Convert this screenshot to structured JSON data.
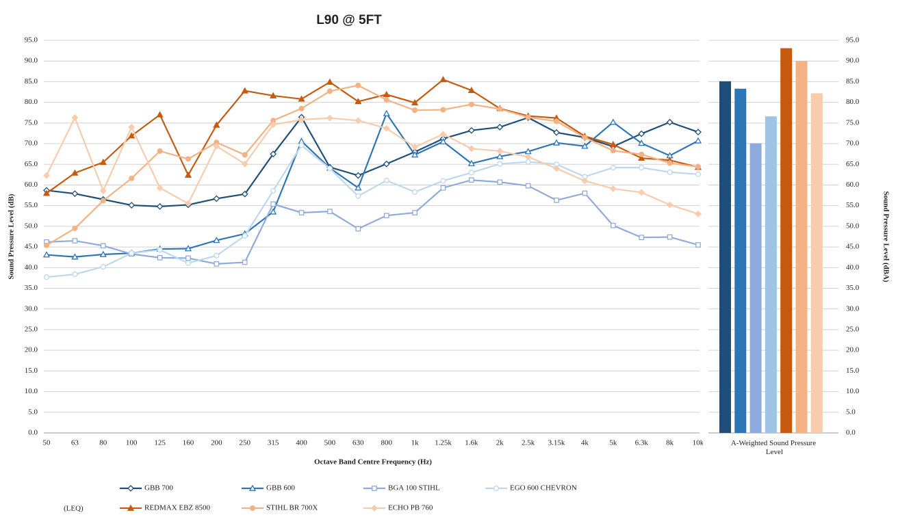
{
  "chart_data": [
    {
      "type": "line",
      "title": "L90 @ 5FT",
      "y_label": "Sound Pressure Level (dB)",
      "x_label": "Octave Band Centre Frequency (Hz)",
      "grid": true,
      "categories": [
        "50",
        "63",
        "80",
        "100",
        "125",
        "160",
        "200",
        "250",
        "315",
        "400",
        "500",
        "630",
        "800",
        "1k",
        "1.25k",
        "1.6k",
        "2k",
        "2.5k",
        "3.15k",
        "4k",
        "5k",
        "6.3k",
        "8k",
        "10k"
      ],
      "ylim": [
        0,
        95
      ],
      "yticks": [
        {
          "value": 0,
          "label": "0.0"
        },
        {
          "value": 5,
          "label": "5.0"
        },
        {
          "value": 10,
          "label": "10.0"
        },
        {
          "value": 15,
          "label": "15.0"
        },
        {
          "value": 20,
          "label": "20.0"
        },
        {
          "value": 25,
          "label": "25.0"
        },
        {
          "value": 30,
          "label": "30.0"
        },
        {
          "value": 35,
          "label": "35.0"
        },
        {
          "value": 40,
          "label": "40.0"
        },
        {
          "value": 45,
          "label": "45.0"
        },
        {
          "value": 50,
          "label": "50.0"
        },
        {
          "value": 55,
          "label": "55.0"
        },
        {
          "value": 60,
          "label": "60.0"
        },
        {
          "value": 65,
          "label": "65.0"
        },
        {
          "value": 70,
          "label": "70.0"
        },
        {
          "value": 75,
          "label": "75.0"
        },
        {
          "value": 80,
          "label": "80.0"
        },
        {
          "value": 85,
          "label": "85.0"
        },
        {
          "value": 90,
          "label": "90.0"
        },
        {
          "value": 95,
          "label": "95.0"
        }
      ],
      "legend_note": "(LEQ)",
      "series": [
        {
          "name": "GBB 700",
          "color": "#1f4e79",
          "marker": "diamond",
          "filled": false,
          "values": [
            58.7,
            57.9,
            56.5,
            55.1,
            54.8,
            55.2,
            56.7,
            57.8,
            67.5,
            76.4,
            64.3,
            62.3,
            65.1,
            68.0,
            71.2,
            73.2,
            74.0,
            76.3,
            72.7,
            71.5,
            69.3,
            72.4,
            75.2,
            72.8
          ]
        },
        {
          "name": "GBB 600",
          "color": "#2e75b6",
          "marker": "triangle",
          "filled": false,
          "values": [
            43.1,
            42.6,
            43.2,
            43.5,
            44.5,
            44.6,
            46.6,
            48.2,
            53.5,
            70.6,
            64.1,
            59.3,
            77.3,
            67.3,
            70.5,
            65.2,
            66.9,
            68.1,
            70.2,
            69.4,
            75.2,
            70.1,
            67.1,
            70.7
          ]
        },
        {
          "name": "BGA 100 STIHL",
          "color": "#8faadc",
          "marker": "square",
          "filled": false,
          "values": [
            46.2,
            46.5,
            45.3,
            43.3,
            42.4,
            42.3,
            40.9,
            41.3,
            55.4,
            53.3,
            53.6,
            49.4,
            52.6,
            53.3,
            59.3,
            61.2,
            60.7,
            59.8,
            56.3,
            58.0,
            50.2,
            47.3,
            47.4,
            45.5
          ]
        },
        {
          "name": "EGO 600 CHEVRON",
          "color": "#bdd7ee",
          "marker": "circle",
          "filled": false,
          "values": [
            37.7,
            38.4,
            40.2,
            43.5,
            44.3,
            41.1,
            42.9,
            47.7,
            58.6,
            69.6,
            64.0,
            57.3,
            61.1,
            58.3,
            61.0,
            63.0,
            65.1,
            65.6,
            65.0,
            62.0,
            64.2,
            64.2,
            63.1,
            62.6
          ]
        },
        {
          "name": "REDMAX EBZ 8500",
          "color": "#c55a11",
          "marker": "triangle",
          "filled": true,
          "values": [
            58.0,
            62.9,
            65.5,
            71.9,
            77.0,
            62.4,
            74.5,
            82.8,
            81.6,
            80.8,
            84.9,
            80.2,
            81.9,
            79.9,
            85.5,
            82.9,
            78.5,
            76.7,
            76.2,
            71.8,
            69.8,
            66.5,
            66.0,
            64.3
          ]
        },
        {
          "name": "STIHL BR 700X",
          "color": "#f4b183",
          "marker": "circle",
          "filled": true,
          "values": [
            45.4,
            49.5,
            56.2,
            61.6,
            68.2,
            66.3,
            70.3,
            67.3,
            75.6,
            78.5,
            82.7,
            84.1,
            80.6,
            78.1,
            78.2,
            79.5,
            78.4,
            76.4,
            75.4,
            71.5,
            68.3,
            67.4,
            65.3,
            64.4
          ]
        },
        {
          "name": "ECHO PB 760",
          "color": "#f8cbad",
          "marker": "diamond",
          "filled": true,
          "values": [
            62.3,
            76.3,
            58.6,
            74.0,
            59.3,
            55.5,
            69.4,
            65.1,
            74.6,
            75.8,
            76.2,
            75.6,
            73.7,
            69.2,
            72.3,
            68.8,
            68.2,
            66.8,
            64.0,
            61.0,
            59.1,
            58.2,
            55.2,
            53.0
          ]
        }
      ]
    },
    {
      "type": "bar",
      "category_label": "A-Weighted Sound Pressure Level",
      "y_label": "Sound Pressure Level (dBA)",
      "values": [
        85.1,
        83.3,
        70.1,
        76.6,
        93.1,
        90.0,
        82.2
      ],
      "colors": [
        "#1f4e79",
        "#2e75b6",
        "#8faadc",
        "#9dc3e6",
        "#c55a11",
        "#f4b183",
        "#f8cbad"
      ],
      "ylim": [
        0,
        95
      ],
      "yticks": [
        {
          "value": 0,
          "label": "0.0"
        },
        {
          "value": 5,
          "label": "5.0"
        },
        {
          "value": 10,
          "label": "10.0"
        },
        {
          "value": 15,
          "label": "15.0"
        },
        {
          "value": 20,
          "label": "20.0"
        },
        {
          "value": 25,
          "label": "25.0"
        },
        {
          "value": 30,
          "label": "30.0"
        },
        {
          "value": 35,
          "label": "35.0"
        },
        {
          "value": 40,
          "label": "40.0"
        },
        {
          "value": 45,
          "label": "45.0"
        },
        {
          "value": 50,
          "label": "50.0"
        },
        {
          "value": 55,
          "label": "55.0"
        },
        {
          "value": 60,
          "label": "60.0"
        },
        {
          "value": 65,
          "label": "65.0"
        },
        {
          "value": 70,
          "label": "70.0"
        },
        {
          "value": 75,
          "label": "75.0"
        },
        {
          "value": 80,
          "label": "80.0"
        },
        {
          "value": 85,
          "label": "85.0"
        },
        {
          "value": 90,
          "label": "90.0"
        },
        {
          "value": 95,
          "label": "95.0"
        }
      ]
    }
  ]
}
